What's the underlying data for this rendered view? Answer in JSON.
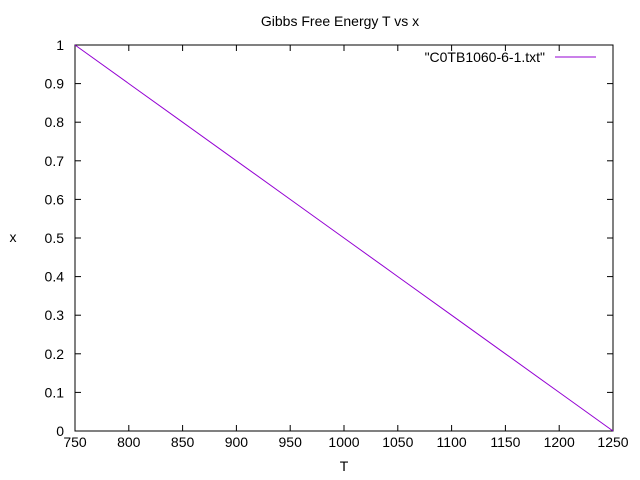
{
  "chart_data": {
    "type": "line",
    "title": "Gibbs Free Energy T vs x",
    "xlabel": "T",
    "ylabel": "x",
    "xlim": [
      750,
      1250
    ],
    "ylim": [
      0,
      1
    ],
    "xticks": [
      750,
      800,
      850,
      900,
      950,
      1000,
      1050,
      1100,
      1150,
      1200,
      1250
    ],
    "yticks": [
      "0",
      "0.1",
      "0.2",
      "0.3",
      "0.4",
      "0.5",
      "0.6",
      "0.7",
      "0.8",
      "0.9",
      "1"
    ],
    "grid": false,
    "legend_position": "top-right",
    "series": [
      {
        "name": "\"C0TB1060-6-1.txt\"",
        "color": "#9400d3",
        "x": [
          750,
          800,
          850,
          900,
          950,
          1000,
          1050,
          1100,
          1150,
          1200,
          1250
        ],
        "y": [
          1.0,
          0.9,
          0.8,
          0.7,
          0.6,
          0.5,
          0.4,
          0.3,
          0.2,
          0.1,
          0.0
        ]
      }
    ]
  }
}
